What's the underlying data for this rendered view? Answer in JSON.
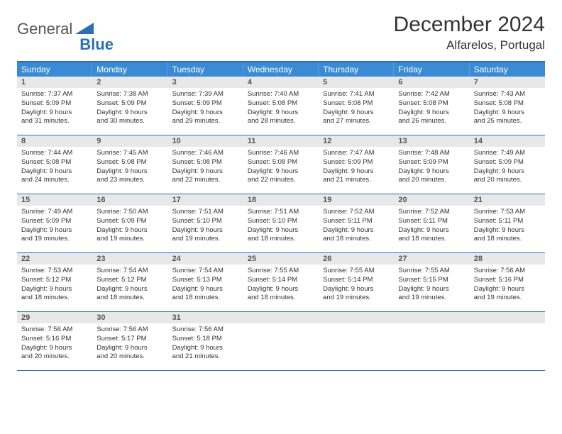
{
  "logo": {
    "text1": "General",
    "text2": "Blue"
  },
  "title": "December 2024",
  "location": "Alfarelos, Portugal",
  "colors": {
    "header_bg": "#3b8bd4",
    "border": "#2a6fb5",
    "daynum_bg": "#e8e8e8",
    "text": "#333333"
  },
  "weekdays": [
    "Sunday",
    "Monday",
    "Tuesday",
    "Wednesday",
    "Thursday",
    "Friday",
    "Saturday"
  ],
  "weeks": [
    [
      {
        "n": "1",
        "sr": "7:37 AM",
        "ss": "5:09 PM",
        "dh": "9",
        "dm": "31"
      },
      {
        "n": "2",
        "sr": "7:38 AM",
        "ss": "5:09 PM",
        "dh": "9",
        "dm": "30"
      },
      {
        "n": "3",
        "sr": "7:39 AM",
        "ss": "5:09 PM",
        "dh": "9",
        "dm": "29"
      },
      {
        "n": "4",
        "sr": "7:40 AM",
        "ss": "5:08 PM",
        "dh": "9",
        "dm": "28"
      },
      {
        "n": "5",
        "sr": "7:41 AM",
        "ss": "5:08 PM",
        "dh": "9",
        "dm": "27"
      },
      {
        "n": "6",
        "sr": "7:42 AM",
        "ss": "5:08 PM",
        "dh": "9",
        "dm": "26"
      },
      {
        "n": "7",
        "sr": "7:43 AM",
        "ss": "5:08 PM",
        "dh": "9",
        "dm": "25"
      }
    ],
    [
      {
        "n": "8",
        "sr": "7:44 AM",
        "ss": "5:08 PM",
        "dh": "9",
        "dm": "24"
      },
      {
        "n": "9",
        "sr": "7:45 AM",
        "ss": "5:08 PM",
        "dh": "9",
        "dm": "23"
      },
      {
        "n": "10",
        "sr": "7:46 AM",
        "ss": "5:08 PM",
        "dh": "9",
        "dm": "22"
      },
      {
        "n": "11",
        "sr": "7:46 AM",
        "ss": "5:08 PM",
        "dh": "9",
        "dm": "22"
      },
      {
        "n": "12",
        "sr": "7:47 AM",
        "ss": "5:09 PM",
        "dh": "9",
        "dm": "21"
      },
      {
        "n": "13",
        "sr": "7:48 AM",
        "ss": "5:09 PM",
        "dh": "9",
        "dm": "20"
      },
      {
        "n": "14",
        "sr": "7:49 AM",
        "ss": "5:09 PM",
        "dh": "9",
        "dm": "20"
      }
    ],
    [
      {
        "n": "15",
        "sr": "7:49 AM",
        "ss": "5:09 PM",
        "dh": "9",
        "dm": "19"
      },
      {
        "n": "16",
        "sr": "7:50 AM",
        "ss": "5:09 PM",
        "dh": "9",
        "dm": "19"
      },
      {
        "n": "17",
        "sr": "7:51 AM",
        "ss": "5:10 PM",
        "dh": "9",
        "dm": "19"
      },
      {
        "n": "18",
        "sr": "7:51 AM",
        "ss": "5:10 PM",
        "dh": "9",
        "dm": "18"
      },
      {
        "n": "19",
        "sr": "7:52 AM",
        "ss": "5:11 PM",
        "dh": "9",
        "dm": "18"
      },
      {
        "n": "20",
        "sr": "7:52 AM",
        "ss": "5:11 PM",
        "dh": "9",
        "dm": "18"
      },
      {
        "n": "21",
        "sr": "7:53 AM",
        "ss": "5:11 PM",
        "dh": "9",
        "dm": "18"
      }
    ],
    [
      {
        "n": "22",
        "sr": "7:53 AM",
        "ss": "5:12 PM",
        "dh": "9",
        "dm": "18"
      },
      {
        "n": "23",
        "sr": "7:54 AM",
        "ss": "5:12 PM",
        "dh": "9",
        "dm": "18"
      },
      {
        "n": "24",
        "sr": "7:54 AM",
        "ss": "5:13 PM",
        "dh": "9",
        "dm": "18"
      },
      {
        "n": "25",
        "sr": "7:55 AM",
        "ss": "5:14 PM",
        "dh": "9",
        "dm": "18"
      },
      {
        "n": "26",
        "sr": "7:55 AM",
        "ss": "5:14 PM",
        "dh": "9",
        "dm": "19"
      },
      {
        "n": "27",
        "sr": "7:55 AM",
        "ss": "5:15 PM",
        "dh": "9",
        "dm": "19"
      },
      {
        "n": "28",
        "sr": "7:56 AM",
        "ss": "5:16 PM",
        "dh": "9",
        "dm": "19"
      }
    ],
    [
      {
        "n": "29",
        "sr": "7:56 AM",
        "ss": "5:16 PM",
        "dh": "9",
        "dm": "20"
      },
      {
        "n": "30",
        "sr": "7:56 AM",
        "ss": "5:17 PM",
        "dh": "9",
        "dm": "20"
      },
      {
        "n": "31",
        "sr": "7:56 AM",
        "ss": "5:18 PM",
        "dh": "9",
        "dm": "21"
      },
      null,
      null,
      null,
      null
    ]
  ],
  "labels": {
    "sunrise": "Sunrise: ",
    "sunset": "Sunset: ",
    "daylight1": "Daylight: ",
    "daylight2": " hours",
    "daylight3": "and ",
    "daylight4": " minutes."
  }
}
